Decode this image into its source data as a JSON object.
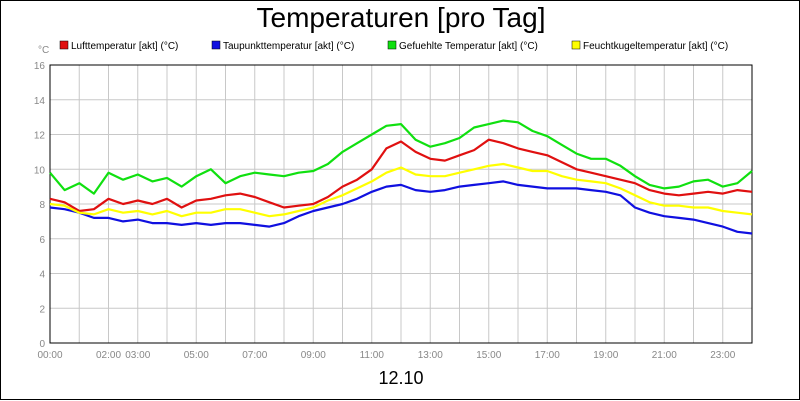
{
  "chart_data": {
    "type": "line",
    "title": "Temperaturen [pro Tag]",
    "xlabel": "12.10",
    "ylabel": "°C",
    "ylim": [
      0,
      16
    ],
    "y_ticks": [
      0,
      2,
      4,
      6,
      8,
      10,
      12,
      14,
      16
    ],
    "x_range_hours": [
      0,
      24
    ],
    "x_tick_labels": [
      "00:00",
      "02:00",
      "03:00",
      "05:00",
      "07:00",
      "09:00",
      "11:00",
      "13:00",
      "15:00",
      "17:00",
      "19:00",
      "21:00",
      "23:00"
    ],
    "x_tick_hours": [
      0,
      2,
      3,
      5,
      7,
      9,
      11,
      13,
      15,
      17,
      19,
      21,
      23
    ],
    "grid": true,
    "legend_position": "top",
    "series": [
      {
        "name": "Lufttemperatur [akt] (°C)",
        "color": "#e01010",
        "points": [
          [
            0,
            8.3
          ],
          [
            0.5,
            8.1
          ],
          [
            1,
            7.6
          ],
          [
            1.5,
            7.7
          ],
          [
            2,
            8.3
          ],
          [
            2.5,
            8.0
          ],
          [
            3,
            8.2
          ],
          [
            3.5,
            8.0
          ],
          [
            4,
            8.3
          ],
          [
            4.5,
            7.8
          ],
          [
            5,
            8.2
          ],
          [
            5.5,
            8.3
          ],
          [
            6,
            8.5
          ],
          [
            6.5,
            8.6
          ],
          [
            7,
            8.4
          ],
          [
            7.5,
            8.1
          ],
          [
            8,
            7.8
          ],
          [
            8.5,
            7.9
          ],
          [
            9,
            8.0
          ],
          [
            9.5,
            8.4
          ],
          [
            10,
            9.0
          ],
          [
            10.5,
            9.4
          ],
          [
            11,
            10.0
          ],
          [
            11.5,
            11.2
          ],
          [
            12,
            11.6
          ],
          [
            12.5,
            11.0
          ],
          [
            13,
            10.6
          ],
          [
            13.5,
            10.5
          ],
          [
            14,
            10.8
          ],
          [
            14.5,
            11.1
          ],
          [
            15,
            11.7
          ],
          [
            15.5,
            11.5
          ],
          [
            16,
            11.2
          ],
          [
            16.5,
            11.0
          ],
          [
            17,
            10.8
          ],
          [
            17.5,
            10.4
          ],
          [
            18,
            10.0
          ],
          [
            18.5,
            9.8
          ],
          [
            19,
            9.6
          ],
          [
            19.5,
            9.4
          ],
          [
            20,
            9.2
          ],
          [
            20.5,
            8.8
          ],
          [
            21,
            8.6
          ],
          [
            21.5,
            8.5
          ],
          [
            22,
            8.6
          ],
          [
            22.5,
            8.7
          ],
          [
            23,
            8.6
          ],
          [
            23.5,
            8.8
          ],
          [
            24,
            8.7
          ]
        ]
      },
      {
        "name": "Taupunkttemperatur [akt] (°C)",
        "color": "#1010e0",
        "points": [
          [
            0,
            7.8
          ],
          [
            0.5,
            7.7
          ],
          [
            1,
            7.5
          ],
          [
            1.5,
            7.2
          ],
          [
            2,
            7.2
          ],
          [
            2.5,
            7.0
          ],
          [
            3,
            7.1
          ],
          [
            3.5,
            6.9
          ],
          [
            4,
            6.9
          ],
          [
            4.5,
            6.8
          ],
          [
            5,
            6.9
          ],
          [
            5.5,
            6.8
          ],
          [
            6,
            6.9
          ],
          [
            6.5,
            6.9
          ],
          [
            7,
            6.8
          ],
          [
            7.5,
            6.7
          ],
          [
            8,
            6.9
          ],
          [
            8.5,
            7.3
          ],
          [
            9,
            7.6
          ],
          [
            9.5,
            7.8
          ],
          [
            10,
            8.0
          ],
          [
            10.5,
            8.3
          ],
          [
            11,
            8.7
          ],
          [
            11.5,
            9.0
          ],
          [
            12,
            9.1
          ],
          [
            12.5,
            8.8
          ],
          [
            13,
            8.7
          ],
          [
            13.5,
            8.8
          ],
          [
            14,
            9.0
          ],
          [
            14.5,
            9.1
          ],
          [
            15,
            9.2
          ],
          [
            15.5,
            9.3
          ],
          [
            16,
            9.1
          ],
          [
            16.5,
            9.0
          ],
          [
            17,
            8.9
          ],
          [
            17.5,
            8.9
          ],
          [
            18,
            8.9
          ],
          [
            18.5,
            8.8
          ],
          [
            19,
            8.7
          ],
          [
            19.5,
            8.5
          ],
          [
            20,
            7.8
          ],
          [
            20.5,
            7.5
          ],
          [
            21,
            7.3
          ],
          [
            21.5,
            7.2
          ],
          [
            22,
            7.1
          ],
          [
            22.5,
            6.9
          ],
          [
            23,
            6.7
          ],
          [
            23.5,
            6.4
          ],
          [
            24,
            6.3
          ]
        ]
      },
      {
        "name": "Gefuehlte Temperatur [akt] (°C)",
        "color": "#10e010",
        "points": [
          [
            0,
            9.8
          ],
          [
            0.5,
            8.8
          ],
          [
            1,
            9.2
          ],
          [
            1.5,
            8.6
          ],
          [
            2,
            9.8
          ],
          [
            2.5,
            9.4
          ],
          [
            3,
            9.7
          ],
          [
            3.5,
            9.3
          ],
          [
            4,
            9.5
          ],
          [
            4.5,
            9.0
          ],
          [
            5,
            9.6
          ],
          [
            5.5,
            10.0
          ],
          [
            6,
            9.2
          ],
          [
            6.5,
            9.6
          ],
          [
            7,
            9.8
          ],
          [
            7.5,
            9.7
          ],
          [
            8,
            9.6
          ],
          [
            8.5,
            9.8
          ],
          [
            9,
            9.9
          ],
          [
            9.5,
            10.3
          ],
          [
            10,
            11.0
          ],
          [
            10.5,
            11.5
          ],
          [
            11,
            12.0
          ],
          [
            11.5,
            12.5
          ],
          [
            12,
            12.6
          ],
          [
            12.5,
            11.7
          ],
          [
            13,
            11.3
          ],
          [
            13.5,
            11.5
          ],
          [
            14,
            11.8
          ],
          [
            14.5,
            12.4
          ],
          [
            15,
            12.6
          ],
          [
            15.5,
            12.8
          ],
          [
            16,
            12.7
          ],
          [
            16.5,
            12.2
          ],
          [
            17,
            11.9
          ],
          [
            17.5,
            11.4
          ],
          [
            18,
            10.9
          ],
          [
            18.5,
            10.6
          ],
          [
            19,
            10.6
          ],
          [
            19.5,
            10.2
          ],
          [
            20,
            9.6
          ],
          [
            20.5,
            9.1
          ],
          [
            21,
            8.9
          ],
          [
            21.5,
            9.0
          ],
          [
            22,
            9.3
          ],
          [
            22.5,
            9.4
          ],
          [
            23,
            9.0
          ],
          [
            23.5,
            9.2
          ],
          [
            24,
            9.9
          ]
        ]
      },
      {
        "name": "Feuchtkugeltemperatur [akt] (°C)",
        "color": "#ffff00",
        "points": [
          [
            0,
            8.0
          ],
          [
            0.5,
            7.9
          ],
          [
            1,
            7.5
          ],
          [
            1.5,
            7.4
          ],
          [
            2,
            7.7
          ],
          [
            2.5,
            7.5
          ],
          [
            3,
            7.6
          ],
          [
            3.5,
            7.4
          ],
          [
            4,
            7.6
          ],
          [
            4.5,
            7.3
          ],
          [
            5,
            7.5
          ],
          [
            5.5,
            7.5
          ],
          [
            6,
            7.7
          ],
          [
            6.5,
            7.7
          ],
          [
            7,
            7.5
          ],
          [
            7.5,
            7.3
          ],
          [
            8,
            7.4
          ],
          [
            8.5,
            7.6
          ],
          [
            9,
            7.8
          ],
          [
            9.5,
            8.2
          ],
          [
            10,
            8.5
          ],
          [
            10.5,
            8.9
          ],
          [
            11,
            9.3
          ],
          [
            11.5,
            9.8
          ],
          [
            12,
            10.1
          ],
          [
            12.5,
            9.7
          ],
          [
            13,
            9.6
          ],
          [
            13.5,
            9.6
          ],
          [
            14,
            9.8
          ],
          [
            14.5,
            10.0
          ],
          [
            15,
            10.2
          ],
          [
            15.5,
            10.3
          ],
          [
            16,
            10.1
          ],
          [
            16.5,
            9.9
          ],
          [
            17,
            9.9
          ],
          [
            17.5,
            9.6
          ],
          [
            18,
            9.4
          ],
          [
            18.5,
            9.3
          ],
          [
            19,
            9.2
          ],
          [
            19.5,
            8.9
          ],
          [
            20,
            8.5
          ],
          [
            20.5,
            8.1
          ],
          [
            21,
            7.9
          ],
          [
            21.5,
            7.9
          ],
          [
            22,
            7.8
          ],
          [
            22.5,
            7.8
          ],
          [
            23,
            7.6
          ],
          [
            23.5,
            7.5
          ],
          [
            24,
            7.4
          ]
        ]
      }
    ]
  }
}
